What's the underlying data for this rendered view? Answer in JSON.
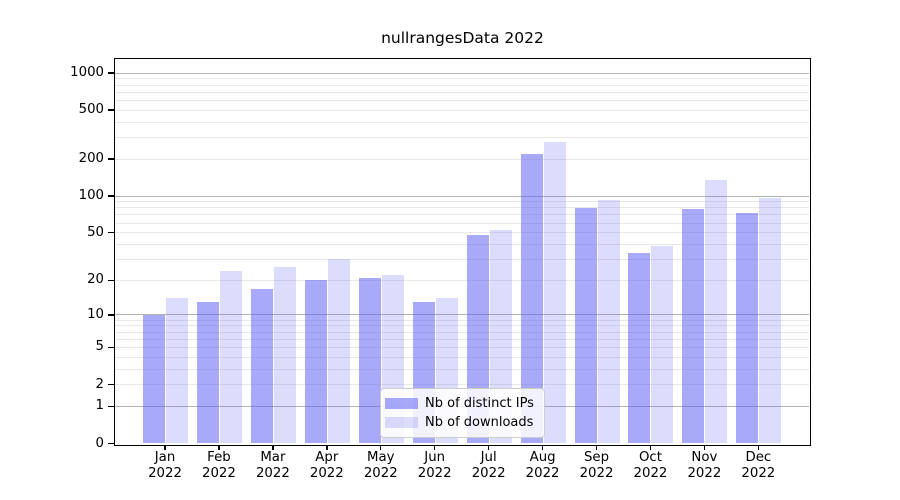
{
  "chart_data": {
    "type": "bar",
    "title": "nullrangesData 2022",
    "categories": [
      "Jan 2022",
      "Feb 2022",
      "Mar 2022",
      "Apr 2022",
      "May 2022",
      "Jun 2022",
      "Jul 2022",
      "Aug 2022",
      "Sep 2022",
      "Oct 2022",
      "Nov 2022",
      "Dec 2022"
    ],
    "series": [
      {
        "name": "Nb of distinct IPs",
        "color": "rgba(90,90,245,0.52)",
        "values": [
          10,
          13,
          17,
          20,
          21,
          13,
          48,
          220,
          80,
          34,
          78,
          72
        ]
      },
      {
        "name": "Nb of downloads",
        "color": "rgba(90,90,245,0.21)",
        "values": [
          14,
          24,
          26,
          30,
          22,
          14,
          53,
          277,
          93,
          39,
          135,
          97
        ]
      }
    ],
    "yscale": "log1p",
    "yticks": [
      0,
      1,
      2,
      5,
      10,
      20,
      50,
      100,
      200,
      500,
      1000
    ],
    "ylim": [
      0,
      1300
    ],
    "grid": "horizontal, log decades major + log minors",
    "legend_position": "bottom-center",
    "colors": {
      "bar_dark_flat": "#a9a9fa",
      "bar_light_flat": "#dcdcfd",
      "grid_major": "#b3b3b3",
      "grid_minor": "#e8e8e8",
      "axis": "#000000"
    }
  }
}
